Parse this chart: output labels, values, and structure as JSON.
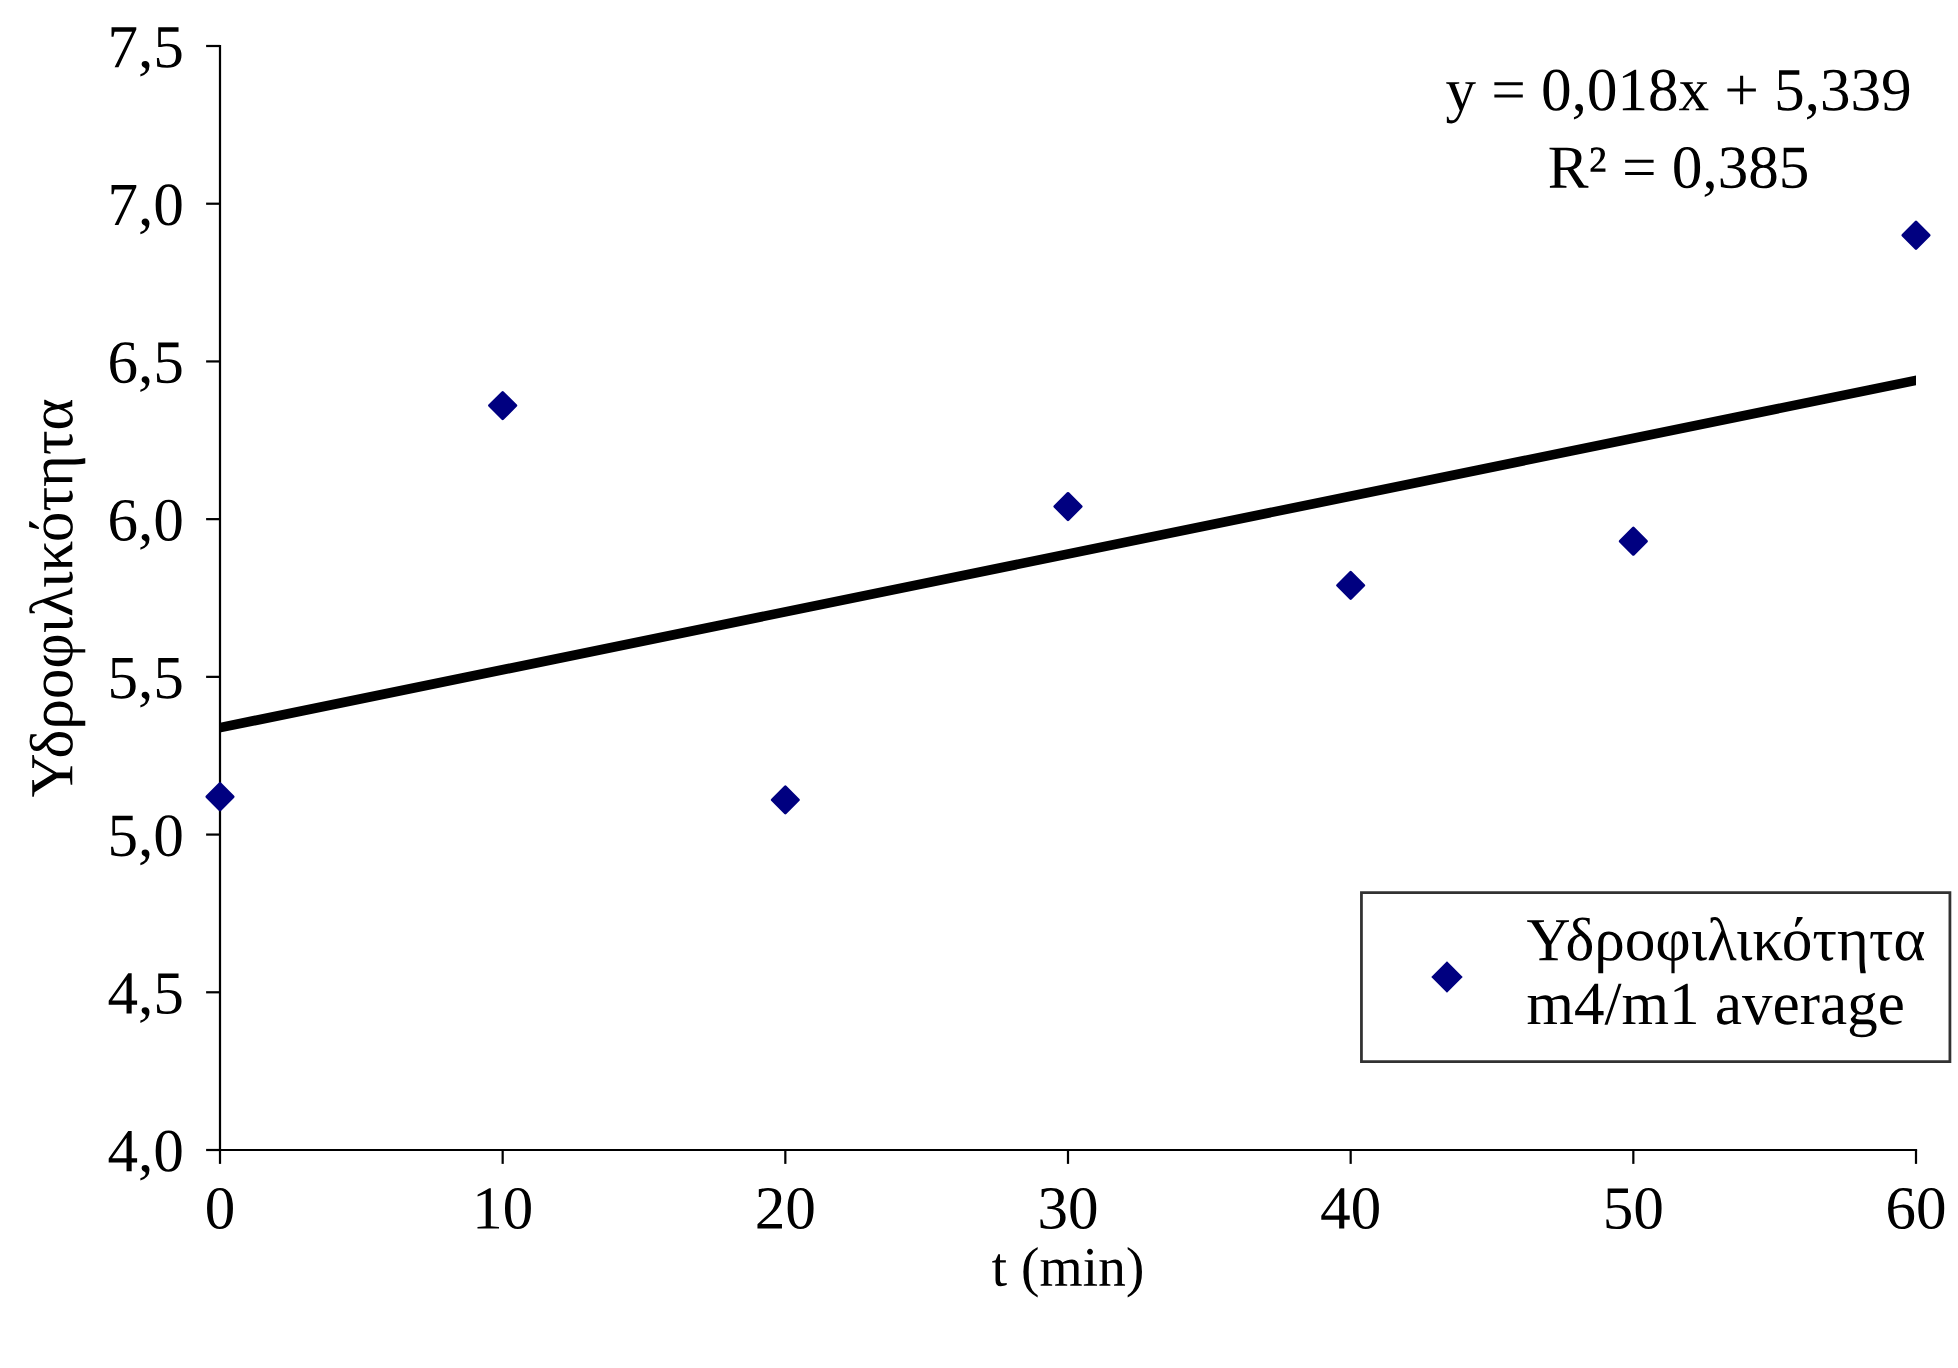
{
  "chart_data": {
    "type": "scatter",
    "xlabel": "t (min)",
    "ylabel": "Υδροφιλικότητα",
    "x": [
      0,
      10,
      20,
      30,
      40,
      50,
      60
    ],
    "series": [
      {
        "name": "Υδροφιλικότητα\nm4/m1 average",
        "color": "#000080",
        "values": [
          5.12,
          6.36,
          5.11,
          6.04,
          5.79,
          5.93,
          6.9
        ],
        "marker": "diamond"
      },
      {
        "type": "line",
        "color": "#000000",
        "x": [
          0,
          60
        ],
        "values": [
          5.339,
          6.44
        ],
        "line_style": "solid"
      }
    ],
    "xlim": [
      0,
      60
    ],
    "xticks": [
      0,
      10,
      20,
      30,
      40,
      50,
      60
    ],
    "ylim": [
      4.0,
      7.5
    ],
    "yticks": [
      {
        "value": 4.0,
        "label": "4,0"
      },
      {
        "value": 4.5,
        "label": "4,5"
      },
      {
        "value": 5.0,
        "label": "5,0"
      },
      {
        "value": 5.5,
        "label": "5,5"
      },
      {
        "value": 6.0,
        "label": "6,0"
      },
      {
        "value": 6.5,
        "label": "6,5"
      },
      {
        "value": 7.0,
        "label": "7,0"
      },
      {
        "value": 7.5,
        "label": "7,5"
      }
    ],
    "annotations": [
      "y = 0,018x + 5,339",
      "R² = 0,385"
    ],
    "grid": false,
    "legend": "bottom right"
  }
}
